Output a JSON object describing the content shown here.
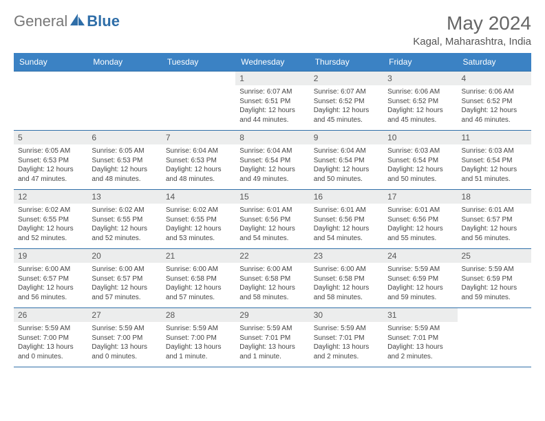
{
  "logo": {
    "text1": "General",
    "text2": "Blue"
  },
  "title": "May 2024",
  "location": "Kagal, Maharashtra, India",
  "colors": {
    "header_bg": "#3b82c4",
    "border": "#2f6ea8",
    "daynum_bg": "#eceded"
  },
  "dayHeaders": [
    "Sunday",
    "Monday",
    "Tuesday",
    "Wednesday",
    "Thursday",
    "Friday",
    "Saturday"
  ],
  "weeks": [
    [
      {
        "n": "",
        "sr": "",
        "ss": "",
        "dl": ""
      },
      {
        "n": "",
        "sr": "",
        "ss": "",
        "dl": ""
      },
      {
        "n": "",
        "sr": "",
        "ss": "",
        "dl": ""
      },
      {
        "n": "1",
        "sr": "Sunrise: 6:07 AM",
        "ss": "Sunset: 6:51 PM",
        "dl": "Daylight: 12 hours and 44 minutes."
      },
      {
        "n": "2",
        "sr": "Sunrise: 6:07 AM",
        "ss": "Sunset: 6:52 PM",
        "dl": "Daylight: 12 hours and 45 minutes."
      },
      {
        "n": "3",
        "sr": "Sunrise: 6:06 AM",
        "ss": "Sunset: 6:52 PM",
        "dl": "Daylight: 12 hours and 45 minutes."
      },
      {
        "n": "4",
        "sr": "Sunrise: 6:06 AM",
        "ss": "Sunset: 6:52 PM",
        "dl": "Daylight: 12 hours and 46 minutes."
      }
    ],
    [
      {
        "n": "5",
        "sr": "Sunrise: 6:05 AM",
        "ss": "Sunset: 6:53 PM",
        "dl": "Daylight: 12 hours and 47 minutes."
      },
      {
        "n": "6",
        "sr": "Sunrise: 6:05 AM",
        "ss": "Sunset: 6:53 PM",
        "dl": "Daylight: 12 hours and 48 minutes."
      },
      {
        "n": "7",
        "sr": "Sunrise: 6:04 AM",
        "ss": "Sunset: 6:53 PM",
        "dl": "Daylight: 12 hours and 48 minutes."
      },
      {
        "n": "8",
        "sr": "Sunrise: 6:04 AM",
        "ss": "Sunset: 6:54 PM",
        "dl": "Daylight: 12 hours and 49 minutes."
      },
      {
        "n": "9",
        "sr": "Sunrise: 6:04 AM",
        "ss": "Sunset: 6:54 PM",
        "dl": "Daylight: 12 hours and 50 minutes."
      },
      {
        "n": "10",
        "sr": "Sunrise: 6:03 AM",
        "ss": "Sunset: 6:54 PM",
        "dl": "Daylight: 12 hours and 50 minutes."
      },
      {
        "n": "11",
        "sr": "Sunrise: 6:03 AM",
        "ss": "Sunset: 6:54 PM",
        "dl": "Daylight: 12 hours and 51 minutes."
      }
    ],
    [
      {
        "n": "12",
        "sr": "Sunrise: 6:02 AM",
        "ss": "Sunset: 6:55 PM",
        "dl": "Daylight: 12 hours and 52 minutes."
      },
      {
        "n": "13",
        "sr": "Sunrise: 6:02 AM",
        "ss": "Sunset: 6:55 PM",
        "dl": "Daylight: 12 hours and 52 minutes."
      },
      {
        "n": "14",
        "sr": "Sunrise: 6:02 AM",
        "ss": "Sunset: 6:55 PM",
        "dl": "Daylight: 12 hours and 53 minutes."
      },
      {
        "n": "15",
        "sr": "Sunrise: 6:01 AM",
        "ss": "Sunset: 6:56 PM",
        "dl": "Daylight: 12 hours and 54 minutes."
      },
      {
        "n": "16",
        "sr": "Sunrise: 6:01 AM",
        "ss": "Sunset: 6:56 PM",
        "dl": "Daylight: 12 hours and 54 minutes."
      },
      {
        "n": "17",
        "sr": "Sunrise: 6:01 AM",
        "ss": "Sunset: 6:56 PM",
        "dl": "Daylight: 12 hours and 55 minutes."
      },
      {
        "n": "18",
        "sr": "Sunrise: 6:01 AM",
        "ss": "Sunset: 6:57 PM",
        "dl": "Daylight: 12 hours and 56 minutes."
      }
    ],
    [
      {
        "n": "19",
        "sr": "Sunrise: 6:00 AM",
        "ss": "Sunset: 6:57 PM",
        "dl": "Daylight: 12 hours and 56 minutes."
      },
      {
        "n": "20",
        "sr": "Sunrise: 6:00 AM",
        "ss": "Sunset: 6:57 PM",
        "dl": "Daylight: 12 hours and 57 minutes."
      },
      {
        "n": "21",
        "sr": "Sunrise: 6:00 AM",
        "ss": "Sunset: 6:58 PM",
        "dl": "Daylight: 12 hours and 57 minutes."
      },
      {
        "n": "22",
        "sr": "Sunrise: 6:00 AM",
        "ss": "Sunset: 6:58 PM",
        "dl": "Daylight: 12 hours and 58 minutes."
      },
      {
        "n": "23",
        "sr": "Sunrise: 6:00 AM",
        "ss": "Sunset: 6:58 PM",
        "dl": "Daylight: 12 hours and 58 minutes."
      },
      {
        "n": "24",
        "sr": "Sunrise: 5:59 AM",
        "ss": "Sunset: 6:59 PM",
        "dl": "Daylight: 12 hours and 59 minutes."
      },
      {
        "n": "25",
        "sr": "Sunrise: 5:59 AM",
        "ss": "Sunset: 6:59 PM",
        "dl": "Daylight: 12 hours and 59 minutes."
      }
    ],
    [
      {
        "n": "26",
        "sr": "Sunrise: 5:59 AM",
        "ss": "Sunset: 7:00 PM",
        "dl": "Daylight: 13 hours and 0 minutes."
      },
      {
        "n": "27",
        "sr": "Sunrise: 5:59 AM",
        "ss": "Sunset: 7:00 PM",
        "dl": "Daylight: 13 hours and 0 minutes."
      },
      {
        "n": "28",
        "sr": "Sunrise: 5:59 AM",
        "ss": "Sunset: 7:00 PM",
        "dl": "Daylight: 13 hours and 1 minute."
      },
      {
        "n": "29",
        "sr": "Sunrise: 5:59 AM",
        "ss": "Sunset: 7:01 PM",
        "dl": "Daylight: 13 hours and 1 minute."
      },
      {
        "n": "30",
        "sr": "Sunrise: 5:59 AM",
        "ss": "Sunset: 7:01 PM",
        "dl": "Daylight: 13 hours and 2 minutes."
      },
      {
        "n": "31",
        "sr": "Sunrise: 5:59 AM",
        "ss": "Sunset: 7:01 PM",
        "dl": "Daylight: 13 hours and 2 minutes."
      },
      {
        "n": "",
        "sr": "",
        "ss": "",
        "dl": ""
      }
    ]
  ]
}
